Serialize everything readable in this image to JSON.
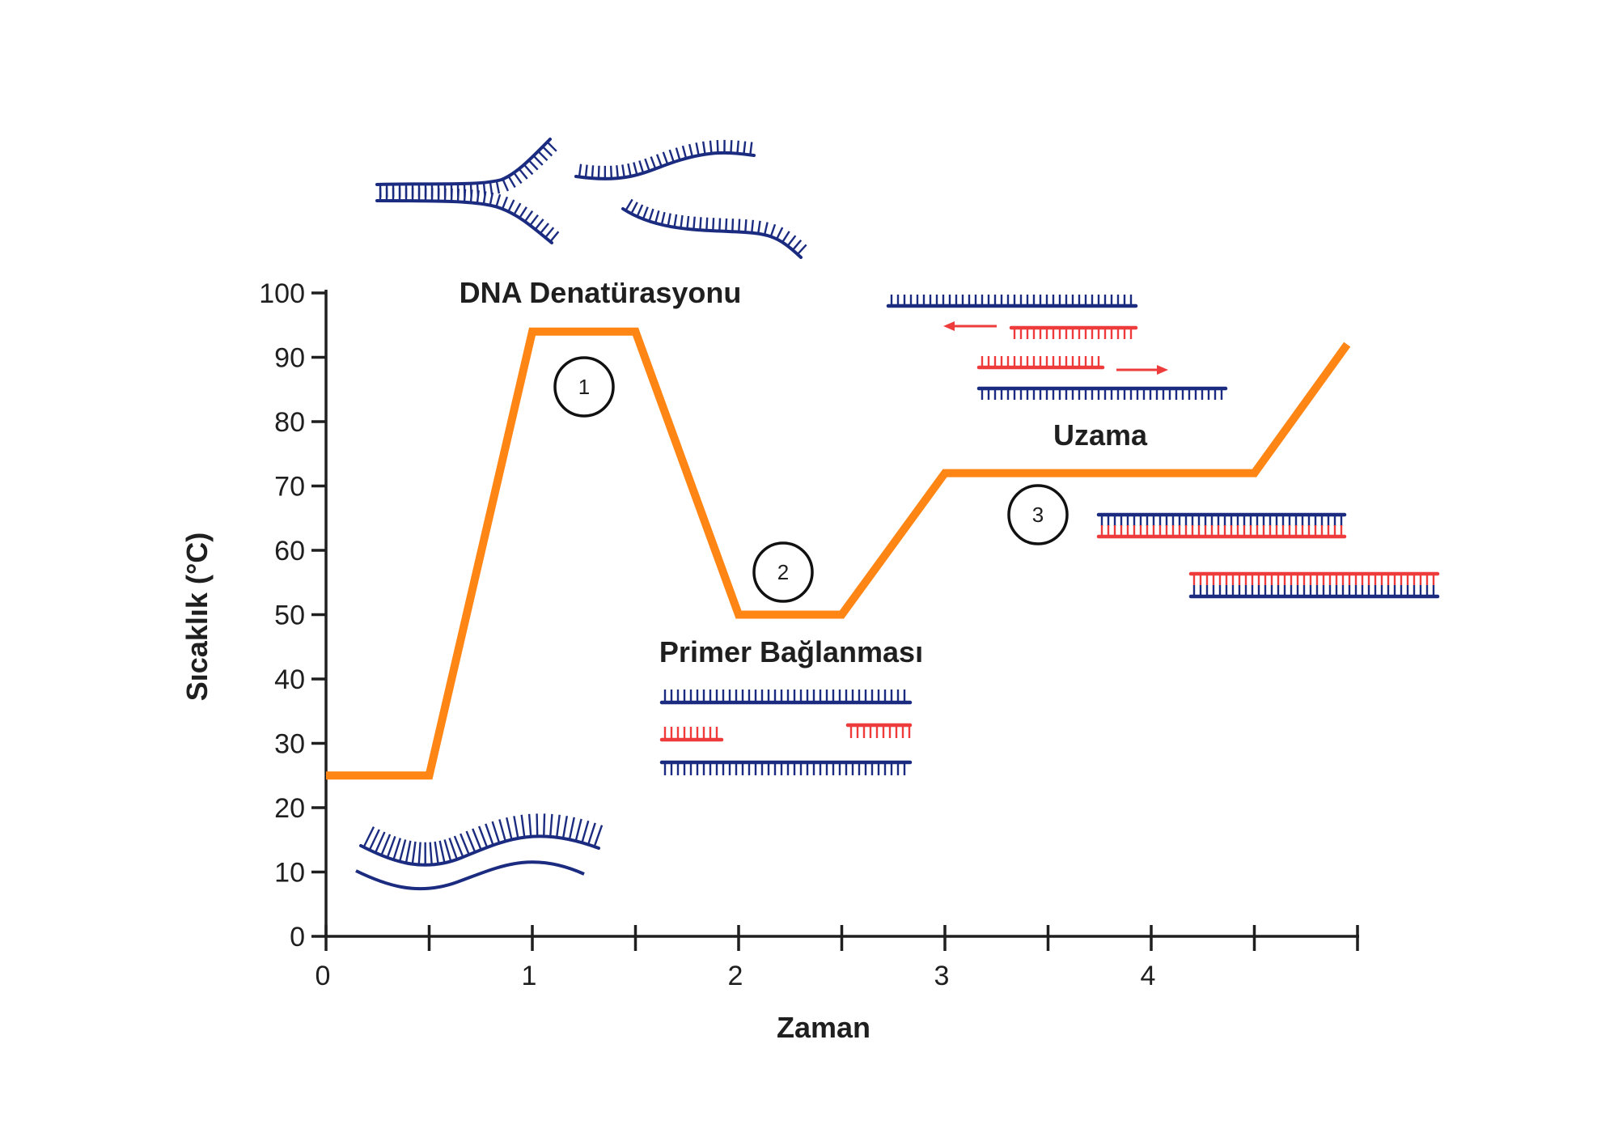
{
  "chart_data": {
    "type": "line",
    "xlabel": "Zaman",
    "ylabel": "Sıcaklık (°C)",
    "xlim": [
      0,
      5
    ],
    "ylim": [
      0,
      100
    ],
    "x_tick_labels": [
      "0",
      "1",
      "2",
      "3",
      "4"
    ],
    "x_tick_label_values": [
      0,
      1,
      2,
      3,
      4
    ],
    "x_minor_ticks": [
      0.5,
      1.5,
      2.5,
      3.5,
      4.5,
      5
    ],
    "y_ticks": [
      0,
      10,
      20,
      30,
      40,
      50,
      60,
      70,
      80,
      90,
      100
    ],
    "grid": false,
    "series": [
      {
        "x": [
          0,
          0.5,
          1.0,
          1.5,
          2.0,
          2.5,
          3.0,
          4.5,
          4.95
        ],
        "y": [
          25,
          25,
          94,
          94,
          50,
          50,
          72,
          72,
          92
        ]
      }
    ],
    "stages": [
      {
        "number": "1",
        "label": "DNA Denatürasyonu"
      },
      {
        "number": "2",
        "label": "Primer Bağlanması"
      },
      {
        "number": "3",
        "label": "Uzama"
      }
    ],
    "colors": {
      "line": "#FF8514",
      "axis": "#1f1f1f",
      "dna_strand": "#1B2C80",
      "primer_strand": "#EE3B3B"
    }
  }
}
